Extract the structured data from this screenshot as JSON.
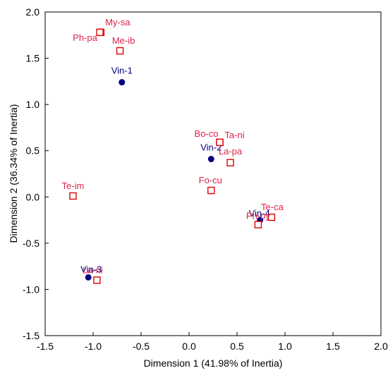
{
  "chart_data": {
    "type": "scatter",
    "title": "",
    "xlabel": "Dimension 1 (41.98% of Inertia)",
    "ylabel": "Dimension 2 (36.34% of Inertia)",
    "xlim": [
      -1.5,
      2.0
    ],
    "ylim": [
      -1.5,
      2.0
    ],
    "xticks": [
      "-1.5",
      "-1.0",
      "-0.5",
      "0.0",
      "0.5",
      "1.0",
      "1.5",
      "2.0"
    ],
    "yticks": [
      "-1.5",
      "-1.0",
      "-0.5",
      "0.0",
      "0.5",
      "1.0",
      "1.5",
      "2.0"
    ],
    "grid": false,
    "series": [
      {
        "marker": "filled-circle",
        "color": "#000080",
        "points": [
          {
            "label": "Vin-1",
            "x": -0.7,
            "y": 1.24
          },
          {
            "label": "Vin-2",
            "x": 0.23,
            "y": 0.41
          },
          {
            "label": "Vin-3",
            "x": -1.05,
            "y": -0.87
          },
          {
            "label": "Vin-4",
            "x": 0.74,
            "y": -0.25
          }
        ]
      },
      {
        "marker": "open-square",
        "color": "#e00000",
        "label_color": "#e0204a",
        "points": [
          {
            "label": "My-sa",
            "x": -0.92,
            "y": 1.78
          },
          {
            "label": "Ph-pa",
            "x": -0.93,
            "y": 1.78
          },
          {
            "label": "Me-ib",
            "x": -0.72,
            "y": 1.58
          },
          {
            "label": "Bo-co",
            "x": 0.32,
            "y": 0.59
          },
          {
            "label": "Ta-ni",
            "x": 0.32,
            "y": 0.59
          },
          {
            "label": "La-pa",
            "x": 0.43,
            "y": 0.37
          },
          {
            "label": "Te-im",
            "x": -1.21,
            "y": 0.01
          },
          {
            "label": "Fo-cu",
            "x": 0.23,
            "y": 0.07
          },
          {
            "label": "Te-ca",
            "x": 0.86,
            "y": -0.22
          },
          {
            "label": "Ph-py",
            "x": 0.72,
            "y": -0.3
          },
          {
            "label": "La-ni",
            "x": -0.96,
            "y": -0.9
          }
        ]
      }
    ]
  }
}
